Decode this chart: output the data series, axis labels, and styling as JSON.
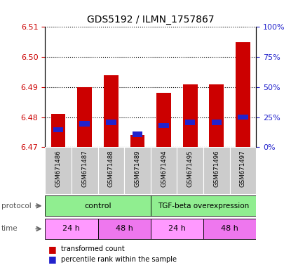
{
  "title": "GDS5192 / ILMN_1757867",
  "samples": [
    "GSM671486",
    "GSM671487",
    "GSM671488",
    "GSM671489",
    "GSM671494",
    "GSM671495",
    "GSM671496",
    "GSM671497"
  ],
  "bar_bottoms": [
    6.47,
    6.47,
    6.47,
    6.47,
    6.47,
    6.47,
    6.47,
    6.47
  ],
  "bar_tops": [
    6.481,
    6.49,
    6.494,
    6.474,
    6.488,
    6.491,
    6.491,
    6.505
  ],
  "blue_positions": [
    6.4758,
    6.4778,
    6.4782,
    6.4742,
    6.4772,
    6.4782,
    6.4782,
    6.48
  ],
  "blue_size": 0.0018,
  "ylim_left": [
    6.47,
    6.51
  ],
  "yticks_left": [
    6.47,
    6.48,
    6.49,
    6.5,
    6.51
  ],
  "yticks_right_pct": [
    0,
    25,
    50,
    75,
    100
  ],
  "bar_color": "#cc0000",
  "blue_color": "#2222cc",
  "bar_width": 0.55,
  "grid_linestyle": ":",
  "grid_color": "black",
  "left_tick_color": "#cc0000",
  "right_tick_color": "#2222cc",
  "protocol_labels": [
    "control",
    "TGF-beta overexpression"
  ],
  "protocol_color": "#90ee90",
  "time_labels": [
    "24 h",
    "48 h",
    "24 h",
    "48 h"
  ],
  "time_color_light": "#ff99ff",
  "time_color_dark": "#ee77ee",
  "sample_bg_color": "#cccccc",
  "legend_red_label": "transformed count",
  "legend_blue_label": "percentile rank within the sample"
}
